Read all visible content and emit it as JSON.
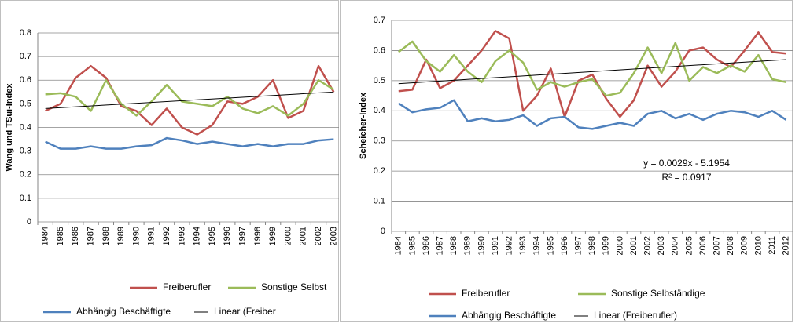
{
  "chart_data": [
    {
      "type": "line",
      "y_label": "Wang und TSui-Index",
      "categories": [
        "1984",
        "1985",
        "1986",
        "1987",
        "1988",
        "1989",
        "1990",
        "1991",
        "1992",
        "1993",
        "1994",
        "1995",
        "1996",
        "1997",
        "1998",
        "1999",
        "2000",
        "2001",
        "2002",
        "2003"
      ],
      "series": [
        {
          "name": "Freiberufler",
          "color": "#c0504d",
          "values": [
            0.47,
            0.5,
            0.61,
            0.66,
            0.61,
            0.49,
            0.47,
            0.41,
            0.48,
            0.4,
            0.37,
            0.41,
            0.51,
            0.5,
            0.53,
            0.6,
            0.44,
            0.47,
            0.66,
            0.55
          ]
        },
        {
          "name": "Sonstige Selbst",
          "color": "#9bbb59",
          "values": [
            0.54,
            0.545,
            0.53,
            0.47,
            0.6,
            0.5,
            0.45,
            0.51,
            0.58,
            0.51,
            0.5,
            0.49,
            0.53,
            0.48,
            0.46,
            0.49,
            0.45,
            0.5,
            0.6,
            0.56
          ]
        },
        {
          "name": "Abhängig Beschäftigte",
          "color": "#4f81bd",
          "values": [
            0.34,
            0.31,
            0.31,
            0.32,
            0.31,
            0.31,
            0.32,
            0.325,
            0.355,
            0.345,
            0.33,
            0.34,
            0.33,
            0.32,
            0.33,
            0.32,
            0.33,
            0.33,
            0.345,
            0.35
          ]
        }
      ],
      "trendline": {
        "name": "Linear (Freiber",
        "color": "#000000",
        "values": [
          0.48,
          0.55
        ]
      },
      "ylim": [
        0,
        0.8
      ],
      "yticks": [
        0,
        0.1,
        0.2,
        0.3,
        0.4,
        0.5,
        0.6,
        0.7,
        0.8
      ],
      "grid": true
    },
    {
      "type": "line",
      "y_label": "Scheicher-Index",
      "categories": [
        "1984",
        "1985",
        "1986",
        "1987",
        "1988",
        "1989",
        "1990",
        "1991",
        "1992",
        "1993",
        "1994",
        "1995",
        "1996",
        "1997",
        "1998",
        "1999",
        "2000",
        "2001",
        "2002",
        "2003",
        "2004",
        "2005",
        "2006",
        "2007",
        "2008",
        "2009",
        "2010",
        "2011",
        "2012"
      ],
      "series": [
        {
          "name": "Freiberufler",
          "color": "#c0504d",
          "values": [
            0.465,
            0.47,
            0.57,
            0.475,
            0.5,
            0.55,
            0.6,
            0.665,
            0.64,
            0.4,
            0.45,
            0.54,
            0.38,
            0.5,
            0.52,
            0.44,
            0.38,
            0.435,
            0.55,
            0.48,
            0.53,
            0.6,
            0.61,
            0.57,
            0.545,
            0.6,
            0.66,
            0.595,
            0.59
          ]
        },
        {
          "name": "Sonstige Selbständige",
          "color": "#9bbb59",
          "values": [
            0.595,
            0.63,
            0.565,
            0.53,
            0.585,
            0.53,
            0.495,
            0.565,
            0.6,
            0.56,
            0.47,
            0.495,
            0.48,
            0.495,
            0.505,
            0.45,
            0.46,
            0.525,
            0.61,
            0.525,
            0.625,
            0.5,
            0.545,
            0.525,
            0.55,
            0.53,
            0.585,
            0.505,
            0.495
          ]
        },
        {
          "name": "Abhängig Beschäftigte",
          "color": "#4f81bd",
          "values": [
            0.425,
            0.395,
            0.405,
            0.41,
            0.435,
            0.365,
            0.375,
            0.365,
            0.37,
            0.385,
            0.35,
            0.375,
            0.38,
            0.345,
            0.34,
            0.35,
            0.36,
            0.35,
            0.39,
            0.4,
            0.375,
            0.39,
            0.37,
            0.39,
            0.4,
            0.395,
            0.38,
            0.4,
            0.37
          ]
        }
      ],
      "trendline": {
        "name": "Linear (Freiberufler)",
        "color": "#000000",
        "values": [
          0.49,
          0.57
        ]
      },
      "annotations": [
        "y = 0.0029x - 5.1954",
        "R² = 0.0917"
      ],
      "ylim": [
        0,
        0.7
      ],
      "yticks": [
        0,
        0.1,
        0.2,
        0.3,
        0.4,
        0.5,
        0.6,
        0.7
      ],
      "grid": true
    }
  ]
}
